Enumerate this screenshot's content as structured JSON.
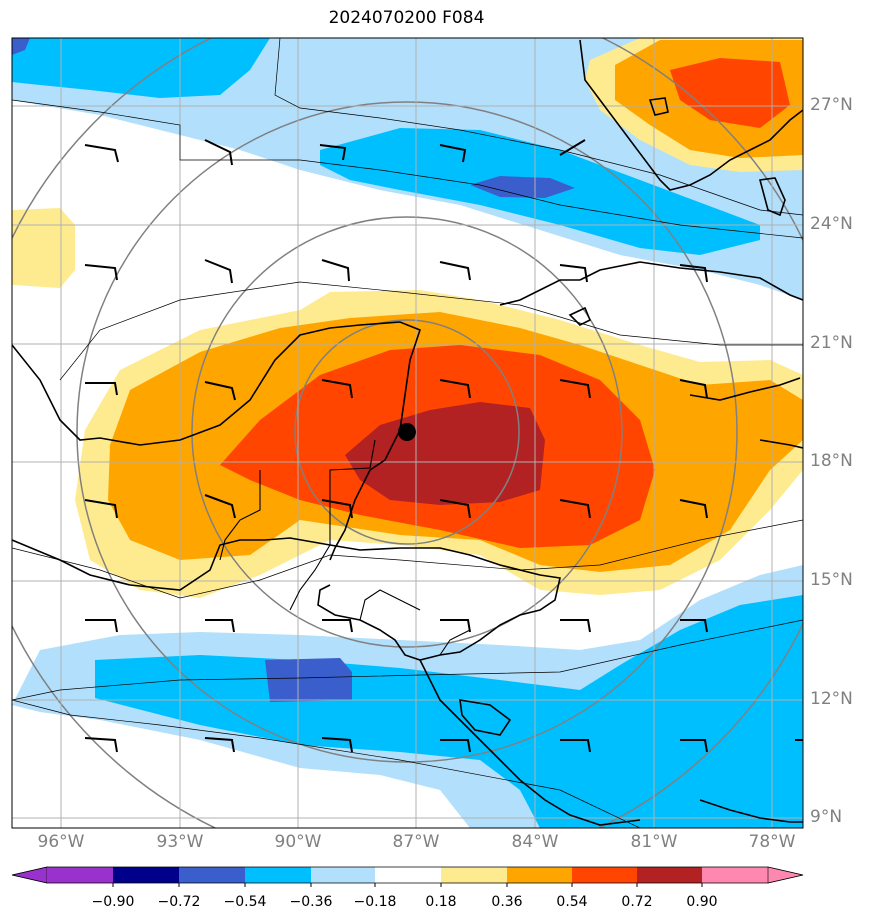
{
  "title": "2024070200 F084",
  "lat_labels": [
    "27°N",
    "24°N",
    "21°N",
    "18°N",
    "15°N",
    "12°N",
    "9°N"
  ],
  "lon_labels": [
    "96°W",
    "93°W",
    "90°W",
    "87°W",
    "84°W",
    "81°W",
    "78°W"
  ],
  "colorbar_labels": [
    "−0.90",
    "−0.72",
    "−0.54",
    "−0.36",
    "−0.18",
    "0.18",
    "0.36",
    "0.54",
    "0.72",
    "0.90"
  ],
  "colors": {
    "neg_090": "#9932cc",
    "neg_072": "#00008b",
    "neg_054": "#3a5fcd",
    "neg_036": "#00bfff",
    "neg_018": "#b2dffb",
    "neutral": "#ffffff",
    "pos_018": "#ffeb8f",
    "pos_036": "#ffa500",
    "pos_054": "#ff4500",
    "pos_072": "#b22222",
    "pos_090": "#ff88b0"
  },
  "storm_center": {
    "lat": 18.8,
    "lon": -87.3
  },
  "map_extent": {
    "lon_min": -97.3,
    "lon_max": -77.3,
    "lat_min": 8.8,
    "lat_max": 28.8
  }
}
